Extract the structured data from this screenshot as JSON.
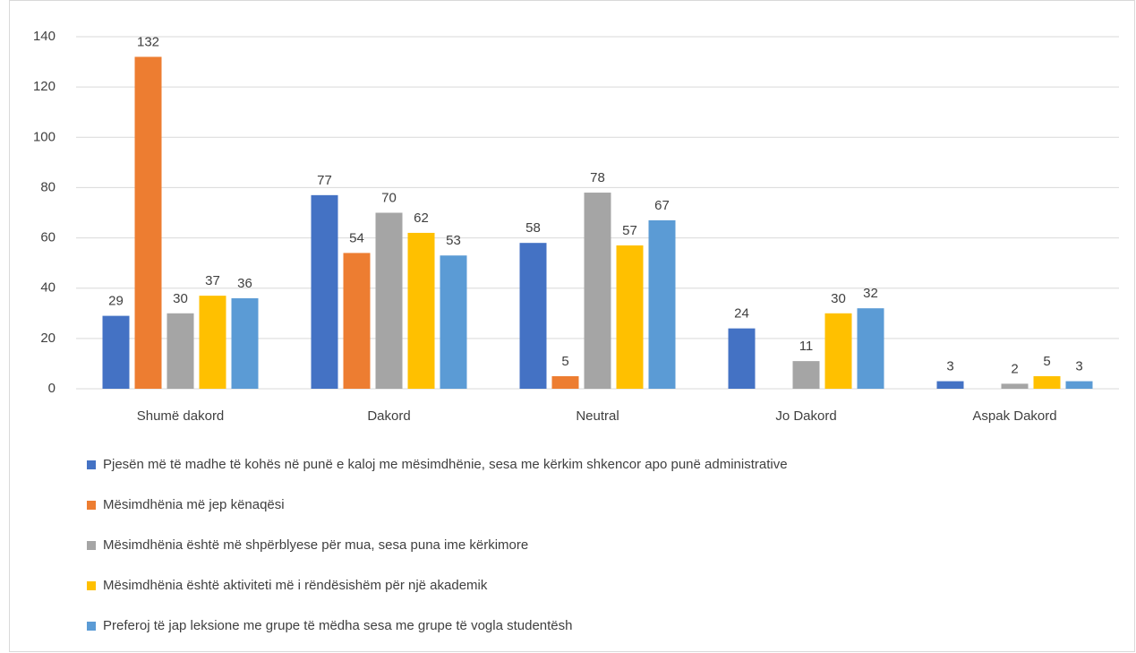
{
  "chart_data": {
    "type": "bar",
    "categories": [
      "Shumë dakord",
      "Dakord",
      "Neutral",
      "Jo Dakord",
      "Aspak Dakord"
    ],
    "series": [
      {
        "name": "Pjesën më të madhe të kohës në punë e kaloj me mësimdhënie, sesa me kërkim shkencor apo punë administrative",
        "color": "#4472c4",
        "values": [
          29,
          77,
          58,
          24,
          3
        ]
      },
      {
        "name": "Mësimdhënia më jep kënaqësi",
        "color": "#ed7d31",
        "values": [
          132,
          54,
          5,
          null,
          null
        ]
      },
      {
        "name": "Mësimdhënia është më shpërblyese për mua, sesa puna ime kërkimore",
        "color": "#a5a5a5",
        "values": [
          30,
          70,
          78,
          11,
          2
        ]
      },
      {
        "name": "Mësimdhënia është aktiviteti më i rëndësishëm për një akademik",
        "color": "#ffc000",
        "values": [
          37,
          62,
          57,
          30,
          5
        ]
      },
      {
        "name": "Preferoj të jap leksione me grupe të mëdha sesa me grupe të vogla studentësh",
        "color": "#5b9bd5",
        "values": [
          36,
          53,
          67,
          32,
          3
        ]
      }
    ],
    "ylim": [
      0,
      140
    ],
    "yticks": [
      0,
      20,
      40,
      60,
      80,
      100,
      120,
      140
    ],
    "grid": true,
    "legend": "bottom"
  }
}
